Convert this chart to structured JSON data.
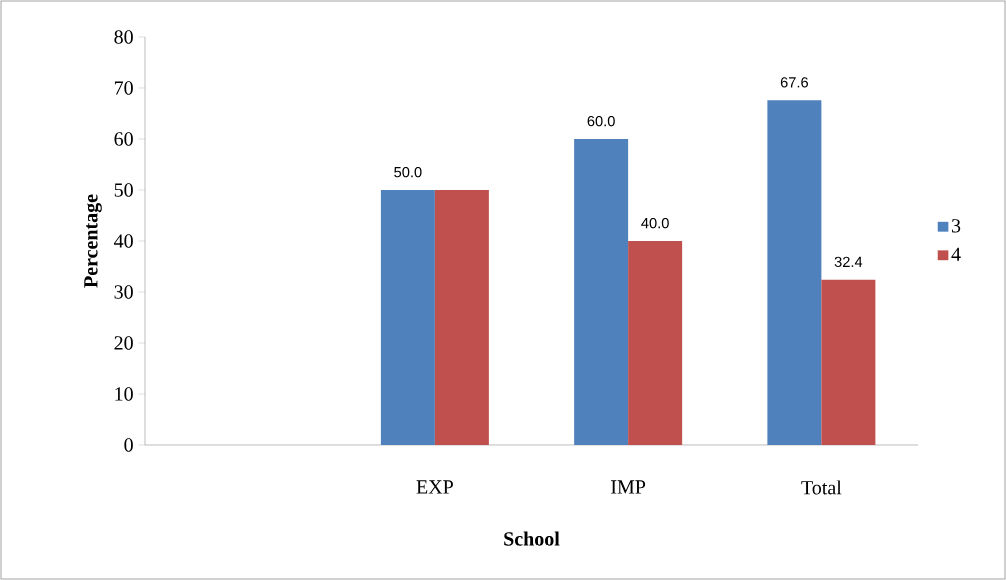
{
  "chart_data": {
    "type": "bar",
    "xlabel": "School",
    "ylabel": "Percentage",
    "categories": [
      null,
      "EXP",
      "IMP",
      "Total"
    ],
    "series": [
      {
        "name": "3",
        "color": "#4f81bd",
        "values": [
          null,
          50.0,
          60.0,
          67.6
        ],
        "value_labels": [
          null,
          "50.0",
          "60.0",
          "67.6"
        ]
      },
      {
        "name": "4",
        "color": "#c0504d",
        "values": [
          null,
          50.0,
          40.0,
          32.4
        ],
        "value_labels": [
          null,
          null,
          "40.0",
          "32.4"
        ]
      }
    ],
    "ylim": [
      0,
      80
    ],
    "yticks": [
      0,
      10,
      20,
      30,
      40,
      50,
      60,
      70,
      80
    ],
    "legend": "right",
    "grid": false
  }
}
